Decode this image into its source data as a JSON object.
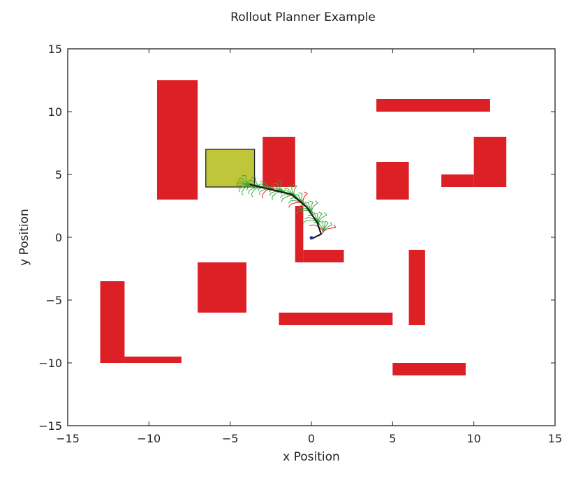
{
  "chart_data": {
    "type": "scatter",
    "title": "Rollout Planner Example",
    "xlabel": "x Position",
    "ylabel": "y Position",
    "xlim": [
      -15,
      15
    ],
    "ylim": [
      -15,
      15
    ],
    "xticks": [
      -15,
      -10,
      -5,
      0,
      5,
      10,
      15
    ],
    "yticks": [
      -15,
      -10,
      -5,
      0,
      5,
      10,
      15
    ],
    "xtick_labels": [
      "−15",
      "−10",
      "−5",
      "0",
      "5",
      "10",
      "15"
    ],
    "ytick_labels": [
      "−15",
      "−10",
      "−5",
      "0",
      "5",
      "10",
      "15"
    ],
    "grid": false,
    "colors": {
      "obstacle": "#dd1f26",
      "goal": "#bfc639",
      "path": "#1a1a1a",
      "rollout_green": "#3aa83a",
      "rollout_red": "#dd1f26",
      "vehicle": "#1f2f99"
    },
    "obstacles": [
      {
        "x": -9.5,
        "y": 3,
        "w": 2.5,
        "h": 9.5
      },
      {
        "x": -3,
        "y": 4,
        "w": 2,
        "h": 4
      },
      {
        "x": -7,
        "y": -6,
        "w": 3,
        "h": 4
      },
      {
        "x": -13,
        "y": -10,
        "w": 1.5,
        "h": 6.5
      },
      {
        "x": -11.5,
        "y": -10,
        "w": 3.5,
        "h": 0.5
      },
      {
        "x": -1,
        "y": -2,
        "w": 0.5,
        "h": 4.5
      },
      {
        "x": -0.5,
        "y": -2,
        "w": 2.5,
        "h": 1
      },
      {
        "x": -2,
        "y": -7,
        "w": 7,
        "h": 1
      },
      {
        "x": 4,
        "y": 10,
        "w": 7,
        "h": 1
      },
      {
        "x": 4,
        "y": 3,
        "w": 2,
        "h": 3
      },
      {
        "x": 8,
        "y": 4,
        "w": 2,
        "h": 1
      },
      {
        "x": 10,
        "y": 4,
        "w": 2,
        "h": 4
      },
      {
        "x": 6,
        "y": -7,
        "w": 1,
        "h": 6
      },
      {
        "x": 5,
        "y": -11,
        "w": 4.5,
        "h": 1
      }
    ],
    "goal_region": {
      "x": -6.5,
      "y": 4,
      "w": 3,
      "h": 3
    },
    "path": [
      {
        "x": 0.05,
        "y": -0.1
      },
      {
        "x": 0.6,
        "y": 0.25
      },
      {
        "x": 0.35,
        "y": 1.2
      },
      {
        "x": -0.3,
        "y": 2.4
      },
      {
        "x": -1.2,
        "y": 3.4
      },
      {
        "x": -2.5,
        "y": 3.8
      },
      {
        "x": -3.8,
        "y": 4.2
      }
    ],
    "rollout_fans": [
      {
        "x": 0.7,
        "y": 0.3,
        "heading": 80,
        "kind": "mixed"
      },
      {
        "x": 0.5,
        "y": 1.0,
        "heading": 110,
        "kind": "green"
      },
      {
        "x": 0.1,
        "y": 1.9,
        "heading": 120,
        "kind": "green"
      },
      {
        "x": -0.4,
        "y": 2.6,
        "heading": 130,
        "kind": "mixed"
      },
      {
        "x": -0.9,
        "y": 3.2,
        "heading": 140,
        "kind": "green"
      },
      {
        "x": -1.6,
        "y": 3.6,
        "heading": 155,
        "kind": "green"
      },
      {
        "x": -2.3,
        "y": 3.85,
        "heading": 165,
        "kind": "mixed"
      },
      {
        "x": -3.0,
        "y": 4.0,
        "heading": 170,
        "kind": "green"
      },
      {
        "x": -3.6,
        "y": 4.15,
        "heading": 170,
        "kind": "green"
      }
    ],
    "vehicle": {
      "x": 0.0,
      "y": -0.05
    }
  }
}
